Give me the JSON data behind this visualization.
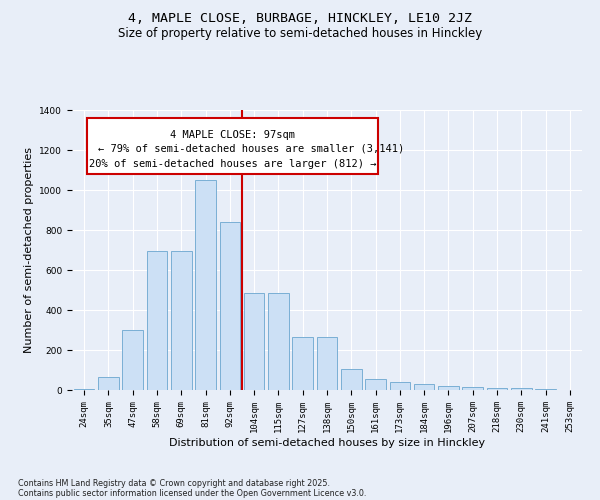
{
  "title_line1": "4, MAPLE CLOSE, BURBAGE, HINCKLEY, LE10 2JZ",
  "title_line2": "Size of property relative to semi-detached houses in Hinckley",
  "xlabel": "Distribution of semi-detached houses by size in Hinckley",
  "ylabel": "Number of semi-detached properties",
  "categories": [
    "24sqm",
    "35sqm",
    "47sqm",
    "58sqm",
    "69sqm",
    "81sqm",
    "92sqm",
    "104sqm",
    "115sqm",
    "127sqm",
    "138sqm",
    "150sqm",
    "161sqm",
    "173sqm",
    "184sqm",
    "196sqm",
    "207sqm",
    "218sqm",
    "230sqm",
    "241sqm",
    "253sqm"
  ],
  "values": [
    5,
    65,
    300,
    695,
    695,
    1050,
    840,
    485,
    485,
    265,
    265,
    105,
    55,
    40,
    28,
    22,
    13,
    9,
    8,
    4,
    1
  ],
  "bar_color": "#cce0f5",
  "bar_edge_color": "#7aafd4",
  "vline_x_index": 6.5,
  "vline_color": "#cc0000",
  "annotation_title": "4 MAPLE CLOSE: 97sqm",
  "annotation_line1": "← 79% of semi-detached houses are smaller (3,141)",
  "annotation_line2": "20% of semi-detached houses are larger (812) →",
  "annotation_box_color": "#cc0000",
  "ylim": [
    0,
    1400
  ],
  "yticks": [
    0,
    200,
    400,
    600,
    800,
    1000,
    1200,
    1400
  ],
  "background_color": "#e8eef8",
  "plot_bg_color": "#e8eef8",
  "footer_line1": "Contains HM Land Registry data © Crown copyright and database right 2025.",
  "footer_line2": "Contains public sector information licensed under the Open Government Licence v3.0.",
  "title_fontsize": 9.5,
  "subtitle_fontsize": 8.5,
  "axis_label_fontsize": 8,
  "tick_fontsize": 6.5,
  "annotation_fontsize": 7.5,
  "footer_fontsize": 5.8
}
